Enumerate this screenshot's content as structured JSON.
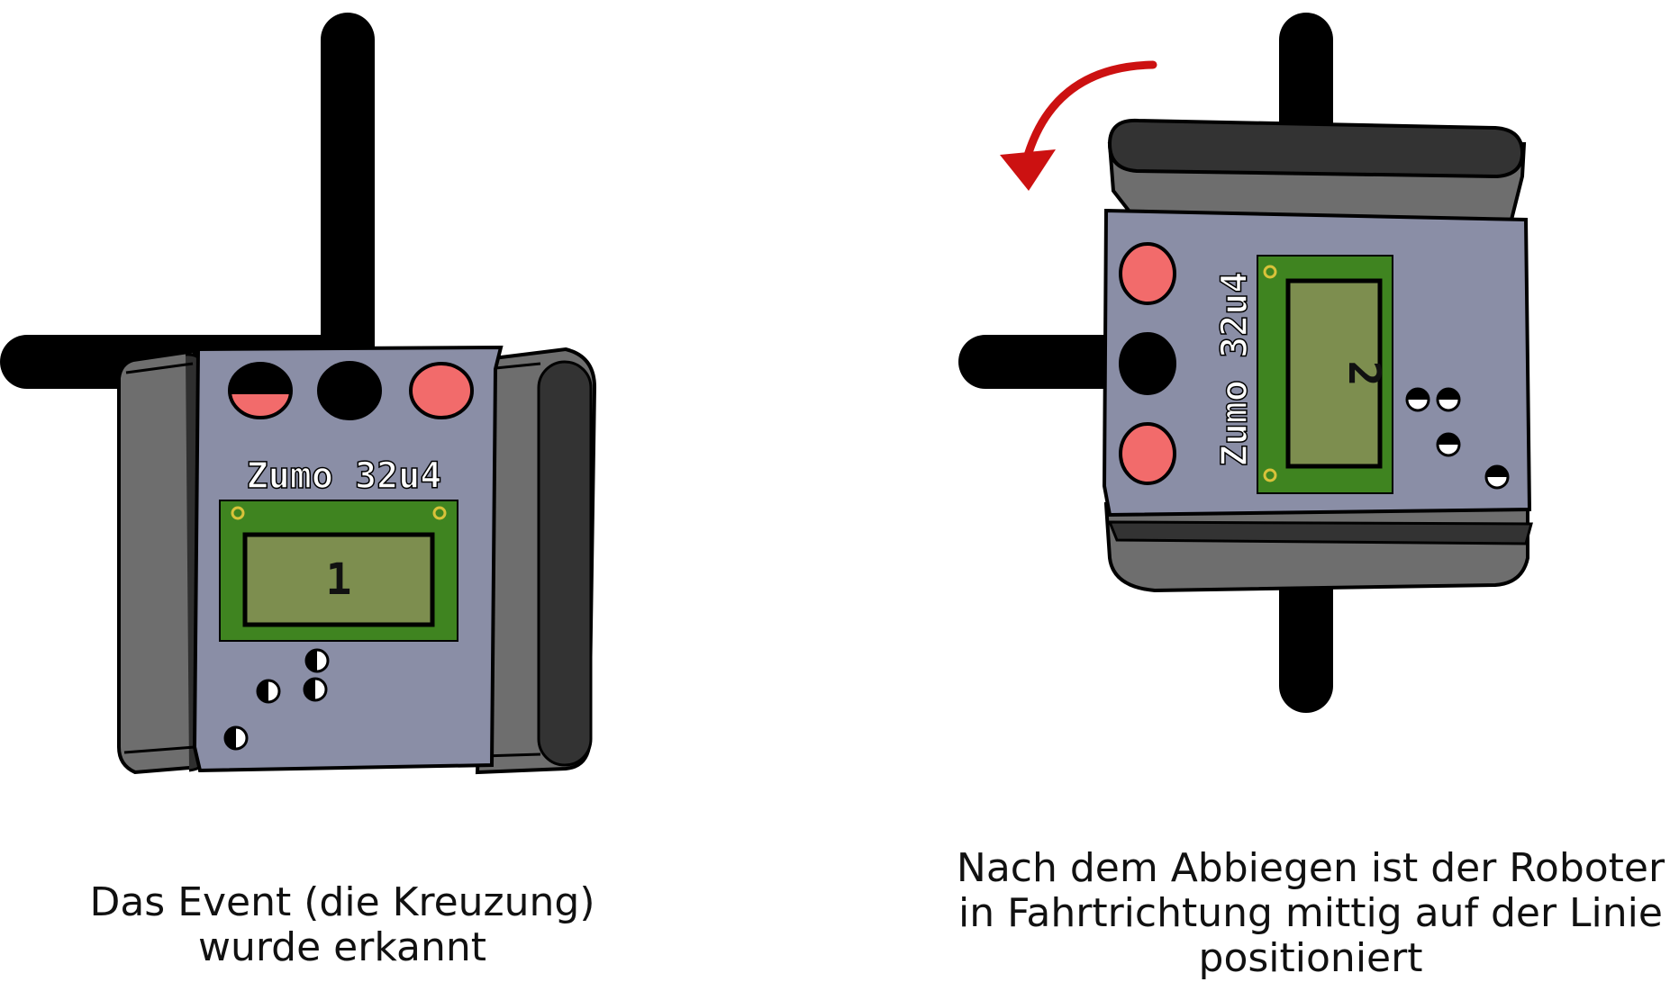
{
  "left_robot": {
    "brand_label": "Zumo 32u4",
    "display_value": "1",
    "leds": [
      "half-on",
      "off",
      "on"
    ]
  },
  "right_robot": {
    "brand_label": "Zumo 32u4",
    "display_value": "2",
    "leds": [
      "on",
      "off",
      "on"
    ],
    "turn_arrow": "counterclockwise"
  },
  "captions": {
    "left": [
      "Das Event (die Kreuzung)",
      "wurde erkannt"
    ],
    "right": [
      "Nach dem Abbiegen ist der Roboter",
      "in Fahrtrichtung mittig auf der Linie",
      "positioniert"
    ]
  },
  "colors": {
    "line": "#000000",
    "body": "#8a8ea6",
    "track": "#6e6e6e",
    "track_dark": "#3a3a3a",
    "pcb": "#3f8420",
    "lcd": "#7d8e4f",
    "led_on": "#f26b6b",
    "led_off": "#000000",
    "arrow": "#cc1111"
  }
}
